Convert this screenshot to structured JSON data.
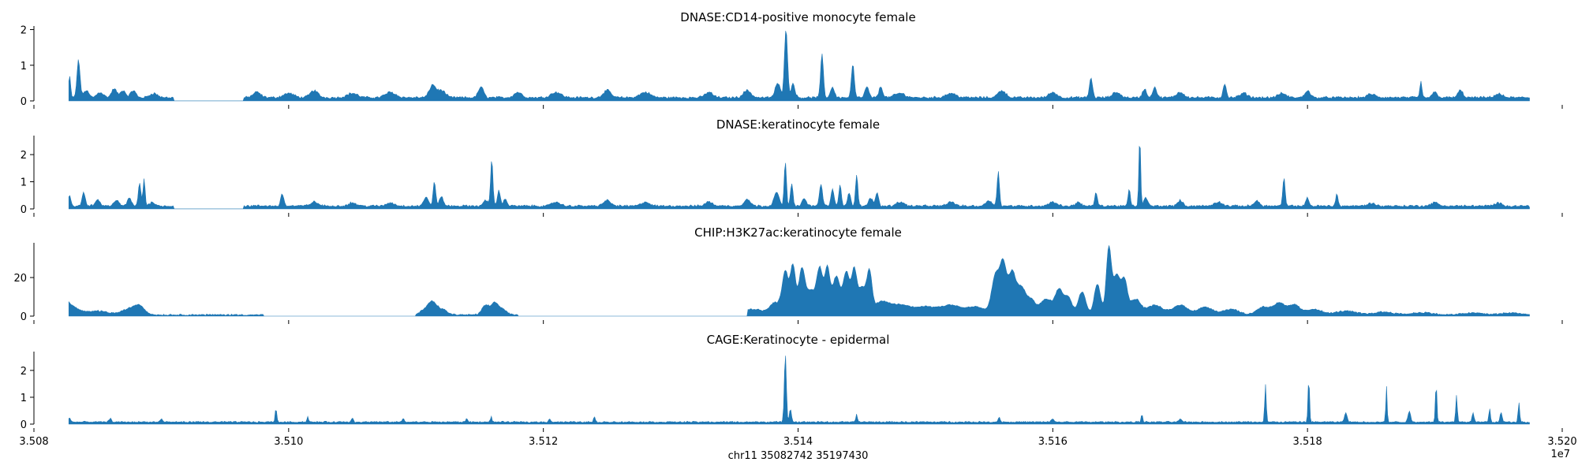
{
  "chart_data": {
    "type": "area",
    "color": "#1f77b4",
    "xlabel": "chr11 35082742 35197430",
    "x_offset_label": "1e7",
    "x_range": [
      35082742,
      35197430
    ],
    "x_axis_range": [
      35080000,
      35200000
    ],
    "x_ticks": [
      35080000,
      35100000,
      35120000,
      35140000,
      35160000,
      35180000,
      35200000
    ],
    "x_tick_labels": [
      "3.508",
      "3.510",
      "3.512",
      "3.514",
      "3.516",
      "3.518",
      "3.520"
    ],
    "panels": [
      {
        "title": "DNASE:CD14-positive monocyte female",
        "ylim": [
          0,
          2.1
        ],
        "y_ticks": [
          0,
          1,
          2
        ],
        "y_tick_labels": [
          "0",
          "1",
          "2"
        ],
        "baseline": 0.07,
        "noise": 0.05,
        "gaps": [
          [
            35091000,
            35096500
          ]
        ],
        "peaks": [
          [
            35082800,
            0.6,
            80
          ],
          [
            35083500,
            1.05,
            120
          ],
          [
            35084100,
            0.2,
            200
          ],
          [
            35085200,
            0.15,
            250
          ],
          [
            35086300,
            0.25,
            200
          ],
          [
            35087000,
            0.2,
            200
          ],
          [
            35087800,
            0.2,
            200
          ],
          [
            35089400,
            0.12,
            300
          ],
          [
            35097500,
            0.15,
            300
          ],
          [
            35100000,
            0.12,
            400
          ],
          [
            35102000,
            0.2,
            300
          ],
          [
            35105000,
            0.12,
            400
          ],
          [
            35108000,
            0.15,
            400
          ],
          [
            35111300,
            0.35,
            250
          ],
          [
            35112000,
            0.2,
            300
          ],
          [
            35115100,
            0.3,
            200
          ],
          [
            35118000,
            0.15,
            300
          ],
          [
            35121000,
            0.15,
            400
          ],
          [
            35125000,
            0.2,
            300
          ],
          [
            35128000,
            0.15,
            400
          ],
          [
            35133000,
            0.15,
            300
          ],
          [
            35136000,
            0.2,
            300
          ],
          [
            35138400,
            0.4,
            200
          ],
          [
            35139050,
            1.95,
            120
          ],
          [
            35139600,
            0.4,
            150
          ],
          [
            35141880,
            1.2,
            110
          ],
          [
            35142700,
            0.3,
            150
          ],
          [
            35144300,
            0.95,
            110
          ],
          [
            35145400,
            0.3,
            150
          ],
          [
            35146500,
            0.3,
            150
          ],
          [
            35148000,
            0.12,
            400
          ],
          [
            35152000,
            0.12,
            400
          ],
          [
            35156000,
            0.2,
            300
          ],
          [
            35160000,
            0.15,
            300
          ],
          [
            35163000,
            0.55,
            120
          ],
          [
            35165000,
            0.15,
            300
          ],
          [
            35167200,
            0.25,
            150
          ],
          [
            35168000,
            0.3,
            150
          ],
          [
            35170000,
            0.15,
            300
          ],
          [
            35173500,
            0.4,
            120
          ],
          [
            35175000,
            0.12,
            300
          ],
          [
            35178000,
            0.12,
            300
          ],
          [
            35180000,
            0.2,
            200
          ],
          [
            35185000,
            0.1,
            300
          ],
          [
            35188900,
            0.45,
            80
          ],
          [
            35190000,
            0.15,
            200
          ],
          [
            35192000,
            0.2,
            200
          ],
          [
            35195000,
            0.1,
            300
          ]
        ]
      },
      {
        "title": "DNASE:keratinocyte female",
        "ylim": [
          0,
          2.7
        ],
        "y_ticks": [
          0,
          1,
          2
        ],
        "y_tick_labels": [
          "0",
          "1",
          "2"
        ],
        "baseline": 0.08,
        "noise": 0.06,
        "gaps": [
          [
            35091000,
            35096500
          ]
        ],
        "peaks": [
          [
            35082800,
            0.4,
            100
          ],
          [
            35083900,
            0.5,
            120
          ],
          [
            35085000,
            0.2,
            200
          ],
          [
            35086500,
            0.2,
            200
          ],
          [
            35087500,
            0.3,
            150
          ],
          [
            35088300,
            0.85,
            100
          ],
          [
            35088650,
            1.0,
            80
          ],
          [
            35089300,
            0.15,
            200
          ],
          [
            35099500,
            0.45,
            120
          ],
          [
            35102000,
            0.15,
            300
          ],
          [
            35105000,
            0.12,
            300
          ],
          [
            35108000,
            0.12,
            300
          ],
          [
            35110800,
            0.3,
            200
          ],
          [
            35111450,
            0.9,
            100
          ],
          [
            35112000,
            0.35,
            150
          ],
          [
            35115500,
            0.2,
            200
          ],
          [
            35115950,
            1.7,
            90
          ],
          [
            35116500,
            0.55,
            120
          ],
          [
            35117000,
            0.25,
            150
          ],
          [
            35121000,
            0.15,
            300
          ],
          [
            35125000,
            0.2,
            300
          ],
          [
            35128000,
            0.15,
            300
          ],
          [
            35133000,
            0.15,
            300
          ],
          [
            35136000,
            0.25,
            250
          ],
          [
            35138300,
            0.5,
            200
          ],
          [
            35139000,
            1.6,
            90
          ],
          [
            35139500,
            0.8,
            100
          ],
          [
            35140500,
            0.3,
            150
          ],
          [
            35141800,
            0.8,
            120
          ],
          [
            35142700,
            0.6,
            120
          ],
          [
            35143300,
            0.8,
            100
          ],
          [
            35144000,
            0.5,
            120
          ],
          [
            35144600,
            1.15,
            90
          ],
          [
            35145700,
            0.3,
            150
          ],
          [
            35146200,
            0.5,
            120
          ],
          [
            35148000,
            0.15,
            300
          ],
          [
            35152000,
            0.15,
            300
          ],
          [
            35155000,
            0.2,
            250
          ],
          [
            35155720,
            1.3,
            90
          ],
          [
            35160000,
            0.15,
            300
          ],
          [
            35162000,
            0.15,
            200
          ],
          [
            35163400,
            0.5,
            100
          ],
          [
            35166000,
            0.6,
            90
          ],
          [
            35166830,
            2.55,
            70
          ],
          [
            35167300,
            0.3,
            150
          ],
          [
            35170000,
            0.2,
            200
          ],
          [
            35173000,
            0.15,
            300
          ],
          [
            35176000,
            0.2,
            200
          ],
          [
            35178150,
            1.05,
            90
          ],
          [
            35180000,
            0.3,
            120
          ],
          [
            35182300,
            0.45,
            90
          ],
          [
            35185000,
            0.1,
            300
          ],
          [
            35190000,
            0.12,
            300
          ],
          [
            35195000,
            0.1,
            300
          ]
        ]
      },
      {
        "title": "CHIP:H3K27ac:keratinocyte female",
        "ylim": [
          0,
          38
        ],
        "y_ticks": [
          0,
          20
        ],
        "y_tick_labels": [
          "0",
          "20"
        ],
        "baseline": 0.4,
        "noise": 0.6,
        "gaps": [
          [
            35098000,
            35110000
          ],
          [
            35118000,
            35136000
          ]
        ],
        "peaks": [
          [
            35082500,
            6,
            350
          ],
          [
            35083200,
            3,
            500
          ],
          [
            35085000,
            2,
            800
          ],
          [
            35087500,
            3,
            600
          ],
          [
            35088300,
            4,
            400
          ],
          [
            35110800,
            3,
            400
          ],
          [
            35111300,
            5,
            300
          ],
          [
            35112000,
            3,
            400
          ],
          [
            35115500,
            5,
            300
          ],
          [
            35116200,
            6,
            250
          ],
          [
            35116800,
            3,
            300
          ],
          [
            35136500,
            3,
            800
          ],
          [
            35138200,
            6,
            400
          ],
          [
            35139000,
            22,
            250
          ],
          [
            35139600,
            25,
            200
          ],
          [
            35140300,
            24,
            250
          ],
          [
            35141000,
            12,
            300
          ],
          [
            35141700,
            24,
            250
          ],
          [
            35142300,
            23,
            200
          ],
          [
            35143000,
            20,
            300
          ],
          [
            35143800,
            22,
            250
          ],
          [
            35144400,
            22,
            200
          ],
          [
            35145000,
            14,
            300
          ],
          [
            35145600,
            20,
            200
          ],
          [
            35146500,
            6,
            600
          ],
          [
            35148000,
            5,
            800
          ],
          [
            35150000,
            4,
            800
          ],
          [
            35152000,
            5,
            800
          ],
          [
            35154000,
            4,
            700
          ],
          [
            35155500,
            20,
            300
          ],
          [
            35156100,
            25,
            250
          ],
          [
            35156800,
            22,
            300
          ],
          [
            35157500,
            12,
            300
          ],
          [
            35158200,
            8,
            400
          ],
          [
            35159500,
            8,
            500
          ],
          [
            35160500,
            12,
            300
          ],
          [
            35161200,
            9,
            300
          ],
          [
            35162300,
            12,
            300
          ],
          [
            35163500,
            16,
            250
          ],
          [
            35164400,
            35,
            200
          ],
          [
            35165000,
            20,
            250
          ],
          [
            35165600,
            18,
            250
          ],
          [
            35166500,
            8,
            400
          ],
          [
            35168000,
            5,
            600
          ],
          [
            35170000,
            5,
            600
          ],
          [
            35172000,
            4,
            600
          ],
          [
            35174000,
            3,
            600
          ],
          [
            35176500,
            4,
            500
          ],
          [
            35177800,
            6,
            500
          ],
          [
            35179000,
            5,
            400
          ],
          [
            35180500,
            3,
            600
          ],
          [
            35183000,
            2,
            800
          ],
          [
            35186000,
            1.5,
            800
          ],
          [
            35189000,
            1.2,
            800
          ],
          [
            35193000,
            1,
            800
          ],
          [
            35196000,
            1,
            800
          ]
        ]
      },
      {
        "title": "CAGE:Keratinocyte - epidermal",
        "ylim": [
          0,
          2.7
        ],
        "y_ticks": [
          0,
          1,
          2
        ],
        "y_tick_labels": [
          "0",
          "1",
          "2"
        ],
        "baseline": 0.06,
        "noise": 0.04,
        "gaps": [],
        "peaks": [
          [
            35082800,
            0.15,
            80
          ],
          [
            35086000,
            0.12,
            100
          ],
          [
            35090000,
            0.1,
            100
          ],
          [
            35099000,
            0.55,
            60
          ],
          [
            35101500,
            0.2,
            60
          ],
          [
            35105000,
            0.15,
            80
          ],
          [
            35109000,
            0.12,
            80
          ],
          [
            35114000,
            0.12,
            80
          ],
          [
            35115900,
            0.2,
            60
          ],
          [
            35120500,
            0.12,
            80
          ],
          [
            35124000,
            0.2,
            60
          ],
          [
            35139000,
            2.55,
            80
          ],
          [
            35139400,
            0.5,
            80
          ],
          [
            35144600,
            0.3,
            60
          ],
          [
            35155800,
            0.18,
            80
          ],
          [
            35160000,
            0.12,
            100
          ],
          [
            35167000,
            0.3,
            60
          ],
          [
            35170000,
            0.12,
            100
          ],
          [
            35176700,
            1.4,
            60
          ],
          [
            35180100,
            1.65,
            60
          ],
          [
            35183000,
            0.35,
            100
          ],
          [
            35186200,
            1.35,
            50
          ],
          [
            35188000,
            0.4,
            100
          ],
          [
            35190100,
            1.45,
            60
          ],
          [
            35191700,
            1.0,
            60
          ],
          [
            35193000,
            0.35,
            80
          ],
          [
            35194300,
            0.5,
            60
          ],
          [
            35195200,
            0.35,
            80
          ],
          [
            35196600,
            0.75,
            60
          ]
        ]
      }
    ]
  }
}
